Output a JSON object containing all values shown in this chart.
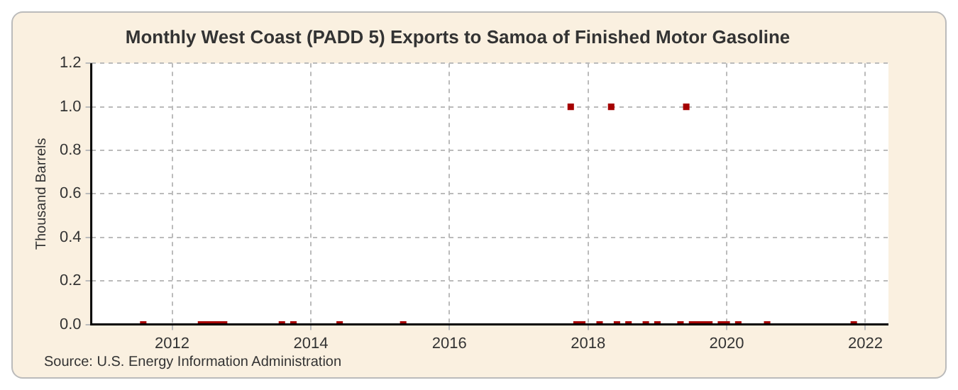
{
  "chart_data": {
    "type": "scatter",
    "title": "Monthly West Coast (PADD 5) Exports to Samoa of Finished Motor Gasoline",
    "ylabel": "Thousand Barrels",
    "annotations": [
      "Source: U.S. Energy Information Administration"
    ],
    "series": [
      {
        "color": "#a50000",
        "x": [
          "2011-08",
          "2012-06",
          "2012-07",
          "2012-08",
          "2012-09",
          "2012-10",
          "2013-08",
          "2013-10",
          "2014-06",
          "2015-05",
          "2017-10",
          "2017-11",
          "2017-12",
          "2018-03",
          "2018-05",
          "2018-06",
          "2018-08",
          "2018-11",
          "2019-01",
          "2019-05",
          "2019-06",
          "2019-07",
          "2019-08",
          "2019-09",
          "2019-10",
          "2019-12",
          "2020-01",
          "2020-03",
          "2020-08",
          "2021-11"
        ],
        "values": [
          0,
          0,
          0,
          0,
          0,
          0,
          0,
          0,
          0,
          0,
          1.0,
          0,
          0,
          0,
          1.0,
          0,
          0,
          0,
          0,
          0,
          1.0,
          0,
          0,
          0,
          0,
          0,
          0,
          0,
          0,
          0
        ]
      }
    ],
    "xlim": [
      "2010-11",
      "2022-05"
    ],
    "xticks": [
      "2012",
      "2014",
      "2016",
      "2018",
      "2020",
      "2022"
    ],
    "ylim": [
      0,
      1.2
    ],
    "yticks": [
      {
        "value": 0,
        "label": "0.0"
      },
      {
        "value": 0.2,
        "label": "0.2"
      },
      {
        "value": 0.4,
        "label": "0.4"
      },
      {
        "value": 0.6,
        "label": "0.6"
      },
      {
        "value": 0.8,
        "label": "0.8"
      },
      {
        "value": 1.0,
        "label": "1.0"
      },
      {
        "value": 1.2,
        "label": "1.2"
      }
    ],
    "grid": true,
    "marker": "square",
    "legend": false
  }
}
